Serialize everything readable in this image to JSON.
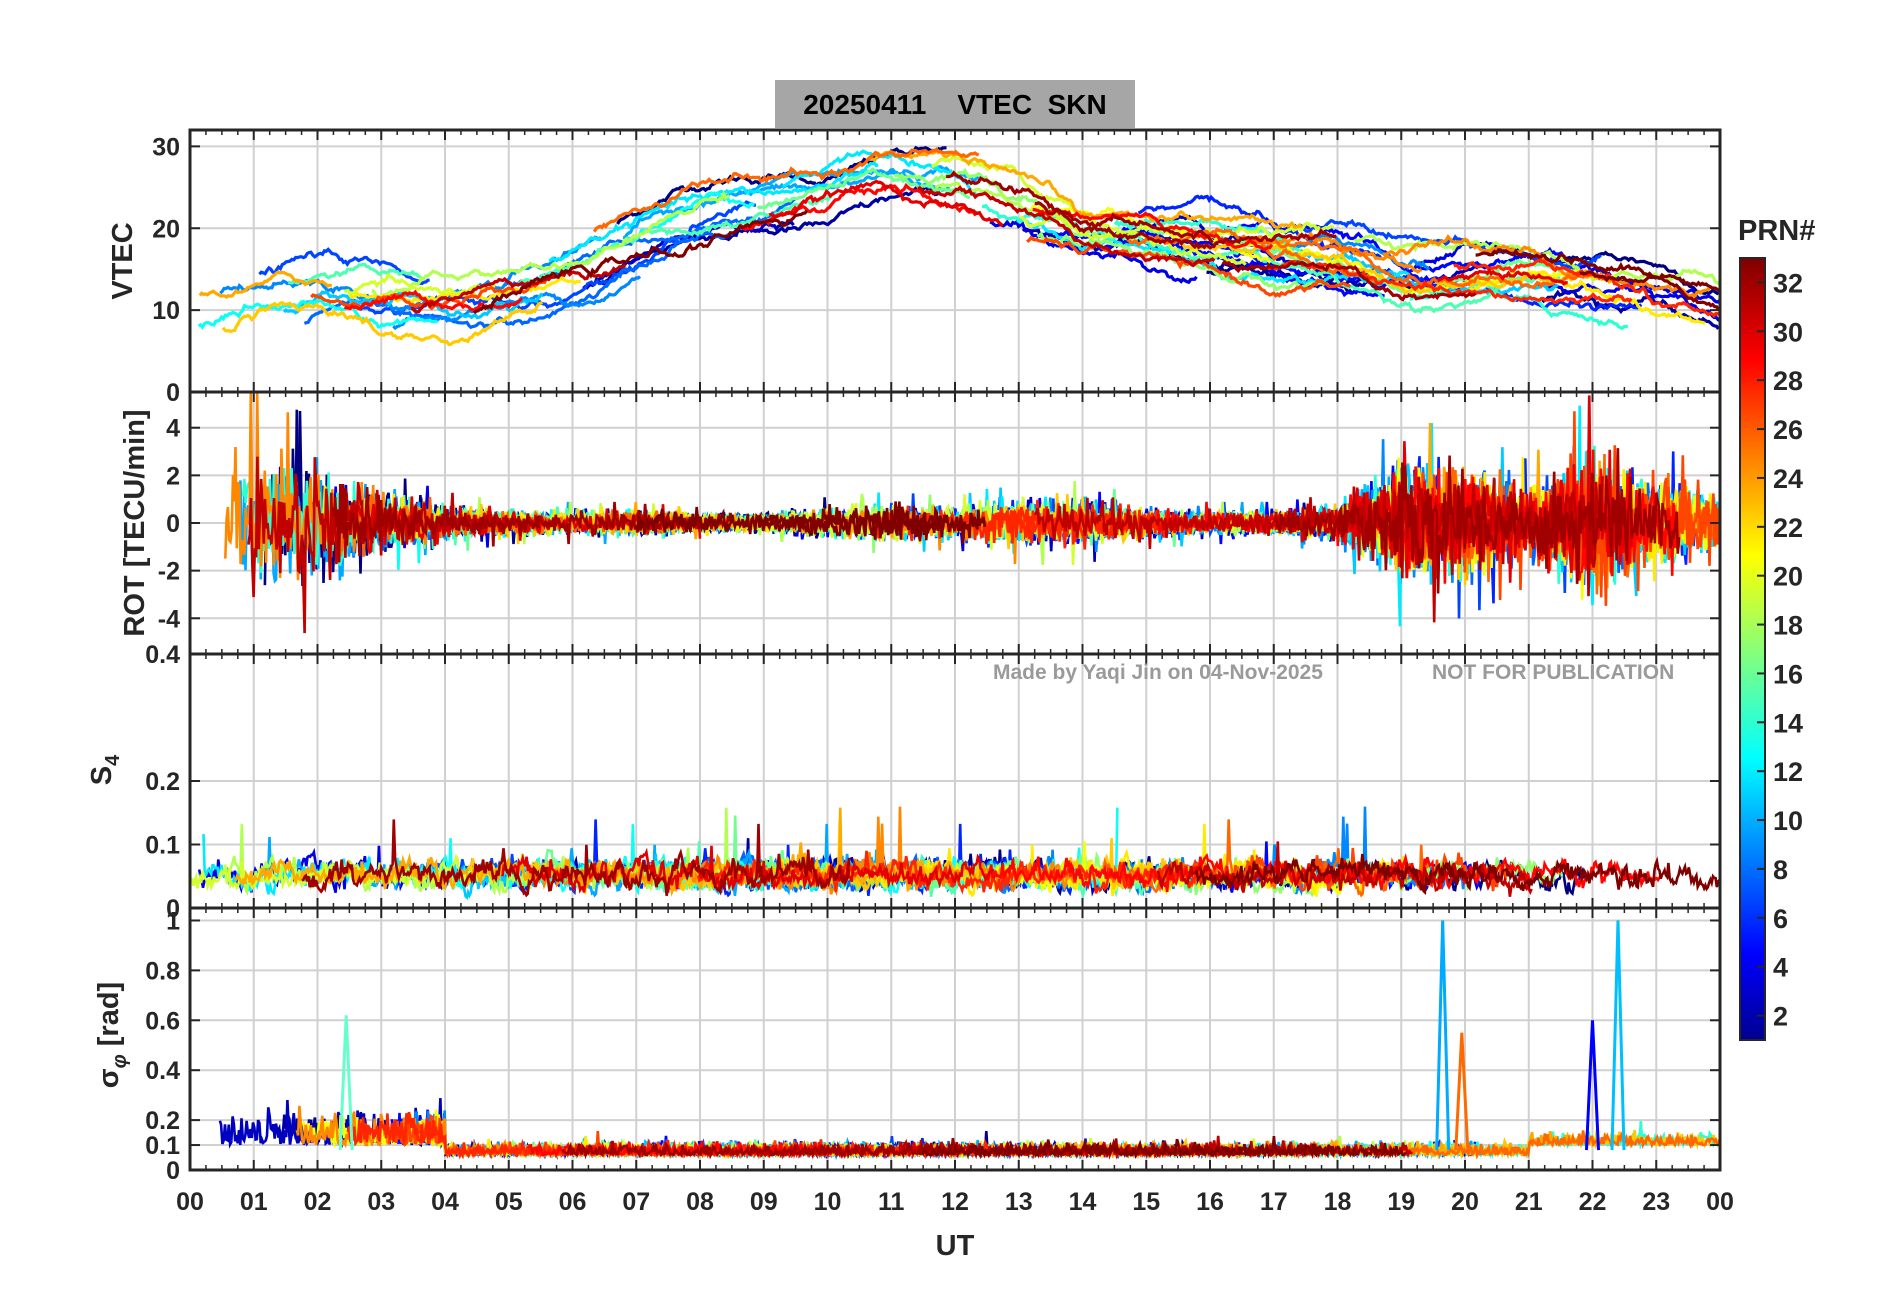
{
  "title": "20250411    VTEC  SKN",
  "watermark_left": "Made by Yaqi Jin on 04-Nov-2025",
  "watermark_right": "NOT FOR PUBLICATION",
  "colorbar": {
    "label": "PRN#",
    "ticks": [
      "2",
      "4",
      "6",
      "8",
      "10",
      "12",
      "14",
      "16",
      "18",
      "20",
      "22",
      "24",
      "26",
      "28",
      "30",
      "32"
    ]
  },
  "chart_data": [
    {
      "type": "line",
      "panel": "vtec",
      "ylabel": "VTEC",
      "xlabel": "",
      "xlim": [
        0,
        24
      ],
      "ylim": [
        0,
        32
      ],
      "yticks": [
        "0",
        "10",
        "20",
        "30"
      ],
      "xticks": [
        "00",
        "01",
        "02",
        "03",
        "04",
        "05",
        "06",
        "07",
        "08",
        "09",
        "10",
        "11",
        "12",
        "13",
        "14",
        "15",
        "16",
        "17",
        "18",
        "19",
        "20",
        "21",
        "22",
        "23",
        "00"
      ],
      "series_shape": {
        "x": [
          0,
          1,
          2,
          3,
          4,
          5,
          6,
          7,
          8,
          9,
          10,
          11,
          12,
          13,
          14,
          15,
          16,
          17,
          18,
          19,
          20,
          21,
          22,
          23,
          24
        ],
        "y": [
          11,
          11,
          12,
          11,
          11,
          13,
          15,
          18,
          21,
          23,
          24,
          26,
          25,
          22,
          19,
          19,
          18,
          17,
          16,
          14,
          14,
          14,
          13,
          12,
          10
        ]
      }
    },
    {
      "type": "line",
      "panel": "rot",
      "ylabel": "ROT [TECU/min]",
      "xlabel": "",
      "xlim": [
        0,
        24
      ],
      "ylim": [
        -5.5,
        5.5
      ],
      "yticks": [
        "-4",
        "-2",
        "0",
        "2",
        "4"
      ],
      "xticks": [
        "00",
        "01",
        "02",
        "03",
        "04",
        "05",
        "06",
        "07",
        "08",
        "09",
        "10",
        "11",
        "12",
        "13",
        "14",
        "15",
        "16",
        "17",
        "18",
        "19",
        "20",
        "21",
        "22",
        "23",
        "00"
      ],
      "activity_amplitude": {
        "x": [
          0,
          1,
          2,
          3,
          4,
          5,
          6,
          7,
          8,
          9,
          10,
          11,
          12,
          13,
          14,
          15,
          16,
          17,
          18,
          19,
          20,
          21,
          22,
          23,
          24
        ],
        "y": [
          2.0,
          2.5,
          2.0,
          1.0,
          0.6,
          0.4,
          0.4,
          0.4,
          0.3,
          0.3,
          0.5,
          0.6,
          0.5,
          0.8,
          0.8,
          0.5,
          0.4,
          0.4,
          0.6,
          2.0,
          1.8,
          1.2,
          2.5,
          1.5,
          1.0
        ]
      }
    },
    {
      "type": "line",
      "panel": "s4",
      "ylabel": "S4",
      "xlabel": "",
      "xlim": [
        0,
        24
      ],
      "ylim": [
        0,
        0.4
      ],
      "yticks": [
        "0",
        "0.1",
        "0.2",
        "0.4"
      ],
      "xticks": [
        "00",
        "01",
        "02",
        "03",
        "04",
        "05",
        "06",
        "07",
        "08",
        "09",
        "10",
        "11",
        "12",
        "13",
        "14",
        "15",
        "16",
        "17",
        "18",
        "19",
        "20",
        "21",
        "22",
        "23",
        "00"
      ],
      "baseline": 0.05
    },
    {
      "type": "line",
      "panel": "sigma_phi",
      "ylabel": "σφ [rad]",
      "xlabel": "UT",
      "xlim": [
        0,
        24
      ],
      "ylim": [
        0,
        1.05
      ],
      "yticks": [
        "0",
        "0.1",
        "0.2",
        "0.4",
        "0.6",
        "0.8",
        "1"
      ],
      "xticks": [
        "00",
        "01",
        "02",
        "03",
        "04",
        "05",
        "06",
        "07",
        "08",
        "09",
        "10",
        "11",
        "12",
        "13",
        "14",
        "15",
        "16",
        "17",
        "18",
        "19",
        "20",
        "21",
        "22",
        "23",
        "00"
      ],
      "spikes": [
        {
          "x": 19.65,
          "y": 1.0
        },
        {
          "x": 19.95,
          "y": 0.55
        },
        {
          "x": 22.0,
          "y": 0.6
        },
        {
          "x": 22.4,
          "y": 1.0
        },
        {
          "x": 2.45,
          "y": 0.62
        }
      ]
    }
  ]
}
